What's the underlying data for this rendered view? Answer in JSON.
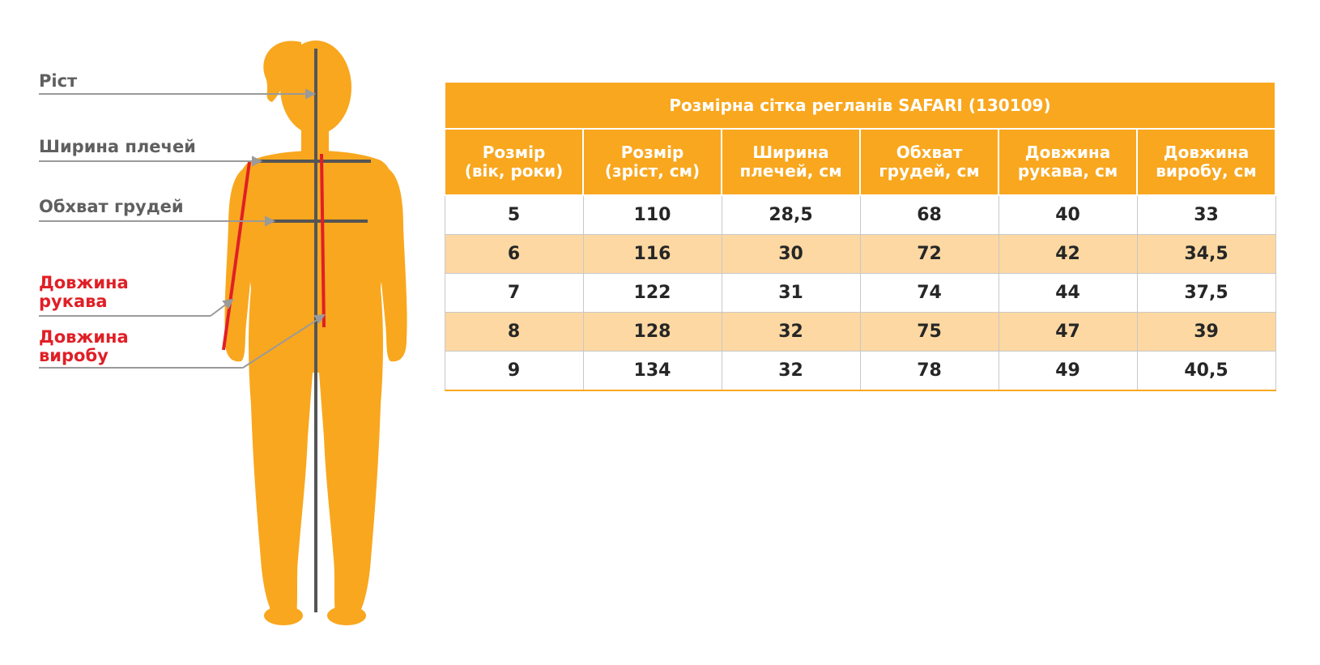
{
  "labels": {
    "height": "Ріст",
    "shoulder_width": "Ширина плечей",
    "chest": "Обхват грудей",
    "sleeve_line1": "Довжина",
    "sleeve_line2": "рукава",
    "product_line1": "Довжина",
    "product_line2": "виробу"
  },
  "colors": {
    "figure": "#f9a71e",
    "lines": "#555555",
    "accent_red": "#e01f26",
    "header": "#f9a71e",
    "stripe": "#fdd8a2"
  },
  "table": {
    "title": "Розмірна сітка регланів SAFARI (130109)",
    "headers": [
      [
        "Розмір",
        "(вік, роки)"
      ],
      [
        "Розмір",
        "(зріст, см)"
      ],
      [
        "Ширина",
        "плечей, см"
      ],
      [
        "Обхват",
        "грудей, см"
      ],
      [
        "Довжина",
        "рукава, см"
      ],
      [
        "Довжина",
        "виробу, см"
      ]
    ],
    "rows": [
      [
        "5",
        "110",
        "28,5",
        "68",
        "40",
        "33"
      ],
      [
        "6",
        "116",
        "30",
        "72",
        "42",
        "34,5"
      ],
      [
        "7",
        "122",
        "31",
        "74",
        "44",
        "37,5"
      ],
      [
        "8",
        "128",
        "32",
        "75",
        "47",
        "39"
      ],
      [
        "9",
        "134",
        "32",
        "78",
        "49",
        "40,5"
      ]
    ]
  }
}
